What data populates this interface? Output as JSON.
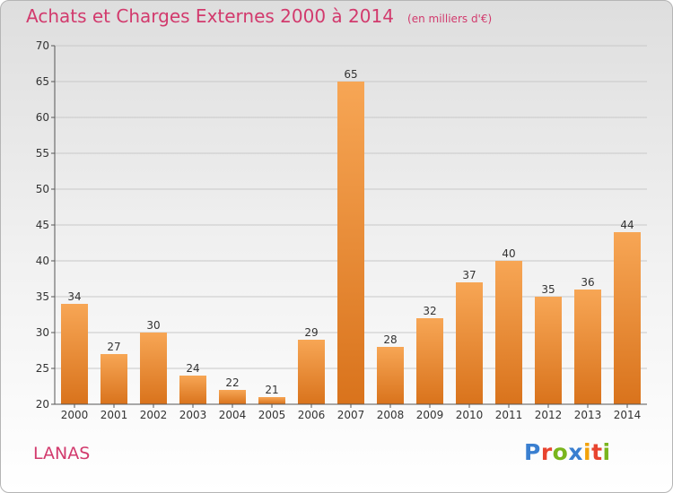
{
  "title": "Achats et Charges Externes 2000 à 2014",
  "unit_note": "(en milliers d'€)",
  "commune": "LANAS",
  "logo": {
    "text": "Proxiti",
    "letters": [
      {
        "ch": "P",
        "color": "#3a7fd0"
      },
      {
        "ch": "r",
        "color": "#e8442f"
      },
      {
        "ch": "o",
        "color": "#7ab51d"
      },
      {
        "ch": "x",
        "color": "#3a7fd0"
      },
      {
        "ch": "i",
        "color": "#f2a20a"
      },
      {
        "ch": "t",
        "color": "#e8442f"
      },
      {
        "ch": "i",
        "color": "#7ab51d"
      }
    ]
  },
  "colors": {
    "accent": "#d23a6d",
    "bar_light": "#f7a655",
    "bar_dark": "#d9731c",
    "axis": "#555555",
    "grid": "#c8c8c8"
  },
  "chart_data": {
    "type": "bar",
    "categories": [
      "2000",
      "2001",
      "2002",
      "2003",
      "2004",
      "2005",
      "2006",
      "2007",
      "2008",
      "2009",
      "2010",
      "2011",
      "2012",
      "2013",
      "2014"
    ],
    "values": [
      34,
      27,
      30,
      24,
      22,
      21,
      29,
      65,
      28,
      32,
      37,
      40,
      35,
      36,
      44
    ],
    "ylim": [
      20,
      70
    ],
    "yticks": [
      20,
      25,
      30,
      35,
      40,
      45,
      50,
      55,
      60,
      65,
      70
    ],
    "grid": true,
    "title": "Achats et Charges Externes 2000 à 2014",
    "xlabel": "",
    "ylabel": ""
  }
}
